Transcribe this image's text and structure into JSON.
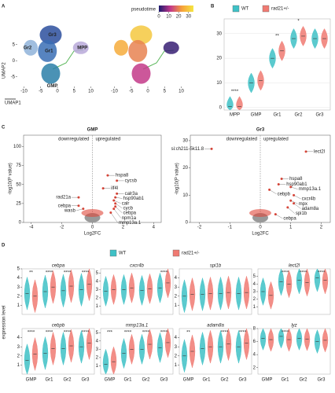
{
  "chart_data": [
    {
      "type": "embedding",
      "panel": "A",
      "xlabel": "UMAP1",
      "ylabel": "UMAP2",
      "xlim": [
        -12,
        12
      ],
      "ylim": [
        -8,
        12
      ],
      "xticks": [
        -10,
        -5,
        0,
        5,
        10
      ],
      "yticks": [
        -5,
        0,
        5
      ],
      "clusters": [
        {
          "label": "Gr3",
          "x": -2,
          "y": 8,
          "pseudotime": 30,
          "color": "#2b4f9e"
        },
        {
          "label": "Gr2",
          "x": -8,
          "y": 4,
          "pseudotime": 25,
          "color": "#8fb3d9"
        },
        {
          "label": "Gr1",
          "x": -3,
          "y": 3,
          "pseudotime": 20,
          "color": "#3a6fb5"
        },
        {
          "label": "GMP",
          "x": -2,
          "y": -4,
          "pseudotime": 12,
          "color": "#2a7fa8"
        },
        {
          "label": "MPP",
          "x": 7,
          "y": 4,
          "pseudotime": 2,
          "color": "#b8a9d9"
        }
      ],
      "colorbar": {
        "title": "pseudotime",
        "lim": [
          0,
          35
        ],
        "ticks": [
          0,
          10,
          20,
          30
        ],
        "colors": [
          "#1a1a6e",
          "#c2378a",
          "#f6a13a",
          "#f5e642"
        ]
      }
    },
    {
      "type": "violin",
      "panel": "B",
      "categories": [
        "MPP",
        "GMP",
        "Gr1",
        "Gr2",
        "Gr3"
      ],
      "ylim": [
        -1,
        36
      ],
      "yticks": [
        0,
        10,
        20,
        30
      ],
      "series": [
        {
          "name": "WT",
          "color": "#3ec1c6",
          "values": [
            0.5,
            10,
            20,
            28,
            28
          ]
        },
        {
          "name": "rad21+/-",
          "color": "#f07a72",
          "values": [
            0.5,
            11,
            23,
            29,
            28
          ]
        }
      ],
      "significance": [
        {
          "category": "MPP",
          "label": "****"
        },
        {
          "category": "Gr1",
          "label": "**"
        },
        {
          "category": "Gr2",
          "label": "*"
        }
      ]
    },
    {
      "type": "volcano",
      "panel": "C",
      "title": "GMP",
      "xlabel": "Log2FC",
      "ylabel": "-log10(P value)",
      "down_label": "downregulated",
      "up_label": "upregulated",
      "xlim": [
        -4.5,
        4.5
      ],
      "ylim": [
        0,
        115
      ],
      "xticks": [
        -4,
        -2,
        0,
        2,
        4
      ],
      "yticks": [
        0,
        25,
        50,
        75,
        100
      ],
      "genes": [
        {
          "label": "hspa8",
          "x": 1.0,
          "y": 62,
          "color": "#2e8b57"
        },
        {
          "label": "cycsb",
          "x": 1.6,
          "y": 55,
          "color": "#2e8b57"
        },
        {
          "label": "ilf4l",
          "x": 0.7,
          "y": 45,
          "color": "#000000"
        },
        {
          "label": "calr3a",
          "x": 1.6,
          "y": 38,
          "color": "#2e8b57"
        },
        {
          "label": "hsp90ab1",
          "x": 1.5,
          "y": 33,
          "color": "#2e8b57"
        },
        {
          "label": "calr",
          "x": 1.4,
          "y": 29,
          "color": "#2e8b57"
        },
        {
          "label": "cycb",
          "x": 1.5,
          "y": 25,
          "color": "#2e8b57"
        },
        {
          "label": "cebpa",
          "x": 1.5,
          "y": 21,
          "color": "#2e8b57"
        },
        {
          "label": "npm1a",
          "x": 1.4,
          "y": 18,
          "color": "#2e8b57"
        },
        {
          "label": "mmp13a.1",
          "x": 1.2,
          "y": 13,
          "color": "#000000"
        },
        {
          "label": "rad21a",
          "x": -0.9,
          "y": 33,
          "color": "#000000"
        },
        {
          "label": "cebpa",
          "x": -0.9,
          "y": 22,
          "color": "#000000"
        },
        {
          "label": "wasb",
          "x": -0.6,
          "y": 18,
          "color": "#000000"
        }
      ]
    },
    {
      "type": "volcano",
      "title": "Gr3",
      "xlabel": "Log2FC",
      "ylabel": "-log10(P value)",
      "down_label": "downregulated",
      "up_label": "upregulated",
      "xlim": [
        -2.3,
        2.3
      ],
      "ylim": [
        0,
        32
      ],
      "xticks": [
        -2,
        -1,
        0,
        1,
        2
      ],
      "yticks": [
        0,
        10,
        20,
        30
      ],
      "genes": [
        {
          "label": "si:ch211-5k11.8",
          "x": -1.6,
          "y": 27,
          "color": "#000000"
        },
        {
          "label": "lect2l",
          "x": 1.5,
          "y": 26,
          "color": "#000000"
        },
        {
          "label": "hspa8",
          "x": 0.7,
          "y": 16,
          "color": "#2e8b57"
        },
        {
          "label": "hsp90ab1",
          "x": 0.6,
          "y": 14,
          "color": "#2e8b57"
        },
        {
          "label": "mmp13a.1",
          "x": 1.0,
          "y": 13,
          "color": "#000000"
        },
        {
          "label": "cebpb",
          "x": 0.3,
          "y": 12,
          "color": "#000000"
        },
        {
          "label": "cxcr4b",
          "x": 1.1,
          "y": 10,
          "color": "#000000"
        },
        {
          "label": "mpx",
          "x": 1.0,
          "y": 8,
          "color": "#000000"
        },
        {
          "label": "adam8a",
          "x": 1.1,
          "y": 7,
          "color": "#000000"
        },
        {
          "label": "spi1b",
          "x": 0.9,
          "y": 5.5,
          "color": "#000000"
        },
        {
          "label": "cebpa",
          "x": 0.5,
          "y": 3,
          "color": "#2e8b57"
        }
      ]
    },
    {
      "type": "violin-grid",
      "panel": "D",
      "ylabel": "expression level",
      "categories": [
        "GMP",
        "Gr1",
        "Gr2",
        "Gr3"
      ],
      "legend": [
        {
          "name": "WT",
          "color": "#3ec1c6"
        },
        {
          "name": "rad21+/-",
          "color": "#f07a72"
        }
      ],
      "genes": [
        {
          "title": "cebpa",
          "ylim": [
            0,
            5
          ],
          "yticks": [
            1,
            2,
            3,
            4,
            5
          ],
          "values": [
            [
              2.3,
              2.5,
              2.6,
              2.7
            ],
            [
              2.0,
              3.0,
              3.1,
              3.3
            ]
          ],
          "significance": [
            {
              "category": "GMP",
              "label": "**"
            },
            {
              "category": "Gr1",
              "label": "****"
            },
            {
              "category": "Gr2",
              "label": "****"
            },
            {
              "category": "Gr3",
              "label": "****"
            }
          ]
        },
        {
          "title": "cxcr4b",
          "ylim": [
            0,
            5.5
          ],
          "yticks": [
            1,
            2,
            3,
            4,
            5
          ],
          "values": [
            [
              2.8,
              3.0,
              2.9,
              3.2
            ],
            [
              3.0,
              3.2,
              3.1,
              3.8
            ]
          ],
          "significance": [
            {
              "category": "Gr3",
              "label": "****"
            }
          ]
        },
        {
          "title": "spi1b",
          "ylim": [
            0,
            5
          ],
          "yticks": [
            1,
            2,
            3,
            4
          ],
          "values": [
            [
              2.0,
              2.2,
              2.3,
              2.3
            ],
            [
              2.2,
              2.3,
              2.4,
              2.4
            ]
          ],
          "significance": []
        },
        {
          "title": "lect2l",
          "ylim": [
            0,
            6
          ],
          "yticks": [
            1,
            2,
            3,
            4,
            5
          ],
          "values": [
            [
              3.0,
              4.3,
              4.5,
              4.8
            ],
            [
              2.5,
              4.0,
              4.2,
              4.5
            ]
          ],
          "significance": [
            {
              "category": "Gr1",
              "label": "****"
            },
            {
              "category": "Gr2",
              "label": "****"
            },
            {
              "category": "Gr3",
              "label": "****"
            }
          ]
        },
        {
          "title": "cebpb",
          "ylim": [
            0,
            5
          ],
          "yticks": [
            1,
            2,
            3,
            4
          ],
          "values": [
            [
              1.5,
              2.3,
              2.8,
              3.0
            ],
            [
              2.2,
              2.8,
              3.1,
              3.4
            ]
          ],
          "significance": [
            {
              "category": "GMP",
              "label": "****"
            },
            {
              "category": "Gr1",
              "label": "****"
            },
            {
              "category": "Gr2",
              "label": "****"
            },
            {
              "category": "Gr3",
              "label": "****"
            }
          ]
        },
        {
          "title": "mmp13a.1",
          "ylim": [
            0,
            5.5
          ],
          "yticks": [
            1,
            2,
            3,
            4,
            5
          ],
          "values": [
            [
              1.2,
              2.5,
              3.0,
              3.2
            ],
            [
              1.5,
              3.0,
              3.6,
              3.8
            ]
          ],
          "significance": [
            {
              "category": "GMP",
              "label": "***"
            },
            {
              "category": "Gr1",
              "label": "****"
            },
            {
              "category": "Gr2",
              "label": "****"
            },
            {
              "category": "Gr3",
              "label": "****"
            }
          ]
        },
        {
          "title": "adam8a",
          "ylim": [
            0,
            5
          ],
          "yticks": [
            1,
            2,
            3,
            4
          ],
          "values": [
            [
              2.0,
              2.8,
              3.0,
              3.0
            ],
            [
              2.5,
              3.0,
              3.3,
              3.4
            ]
          ],
          "significance": [
            {
              "category": "GMP",
              "label": "**"
            },
            {
              "category": "Gr2",
              "label": "****"
            },
            {
              "category": "Gr3",
              "label": "****"
            }
          ]
        },
        {
          "title": "lyz",
          "ylim": [
            1,
            8
          ],
          "yticks": [
            2,
            4,
            6,
            8
          ],
          "values": [
            [
              6.5,
              6.8,
              6.5,
              6.0
            ],
            [
              6.3,
              6.3,
              6.4,
              6.2
            ]
          ],
          "significance": [
            {
              "category": "Gr1",
              "label": "****"
            }
          ]
        }
      ]
    }
  ]
}
